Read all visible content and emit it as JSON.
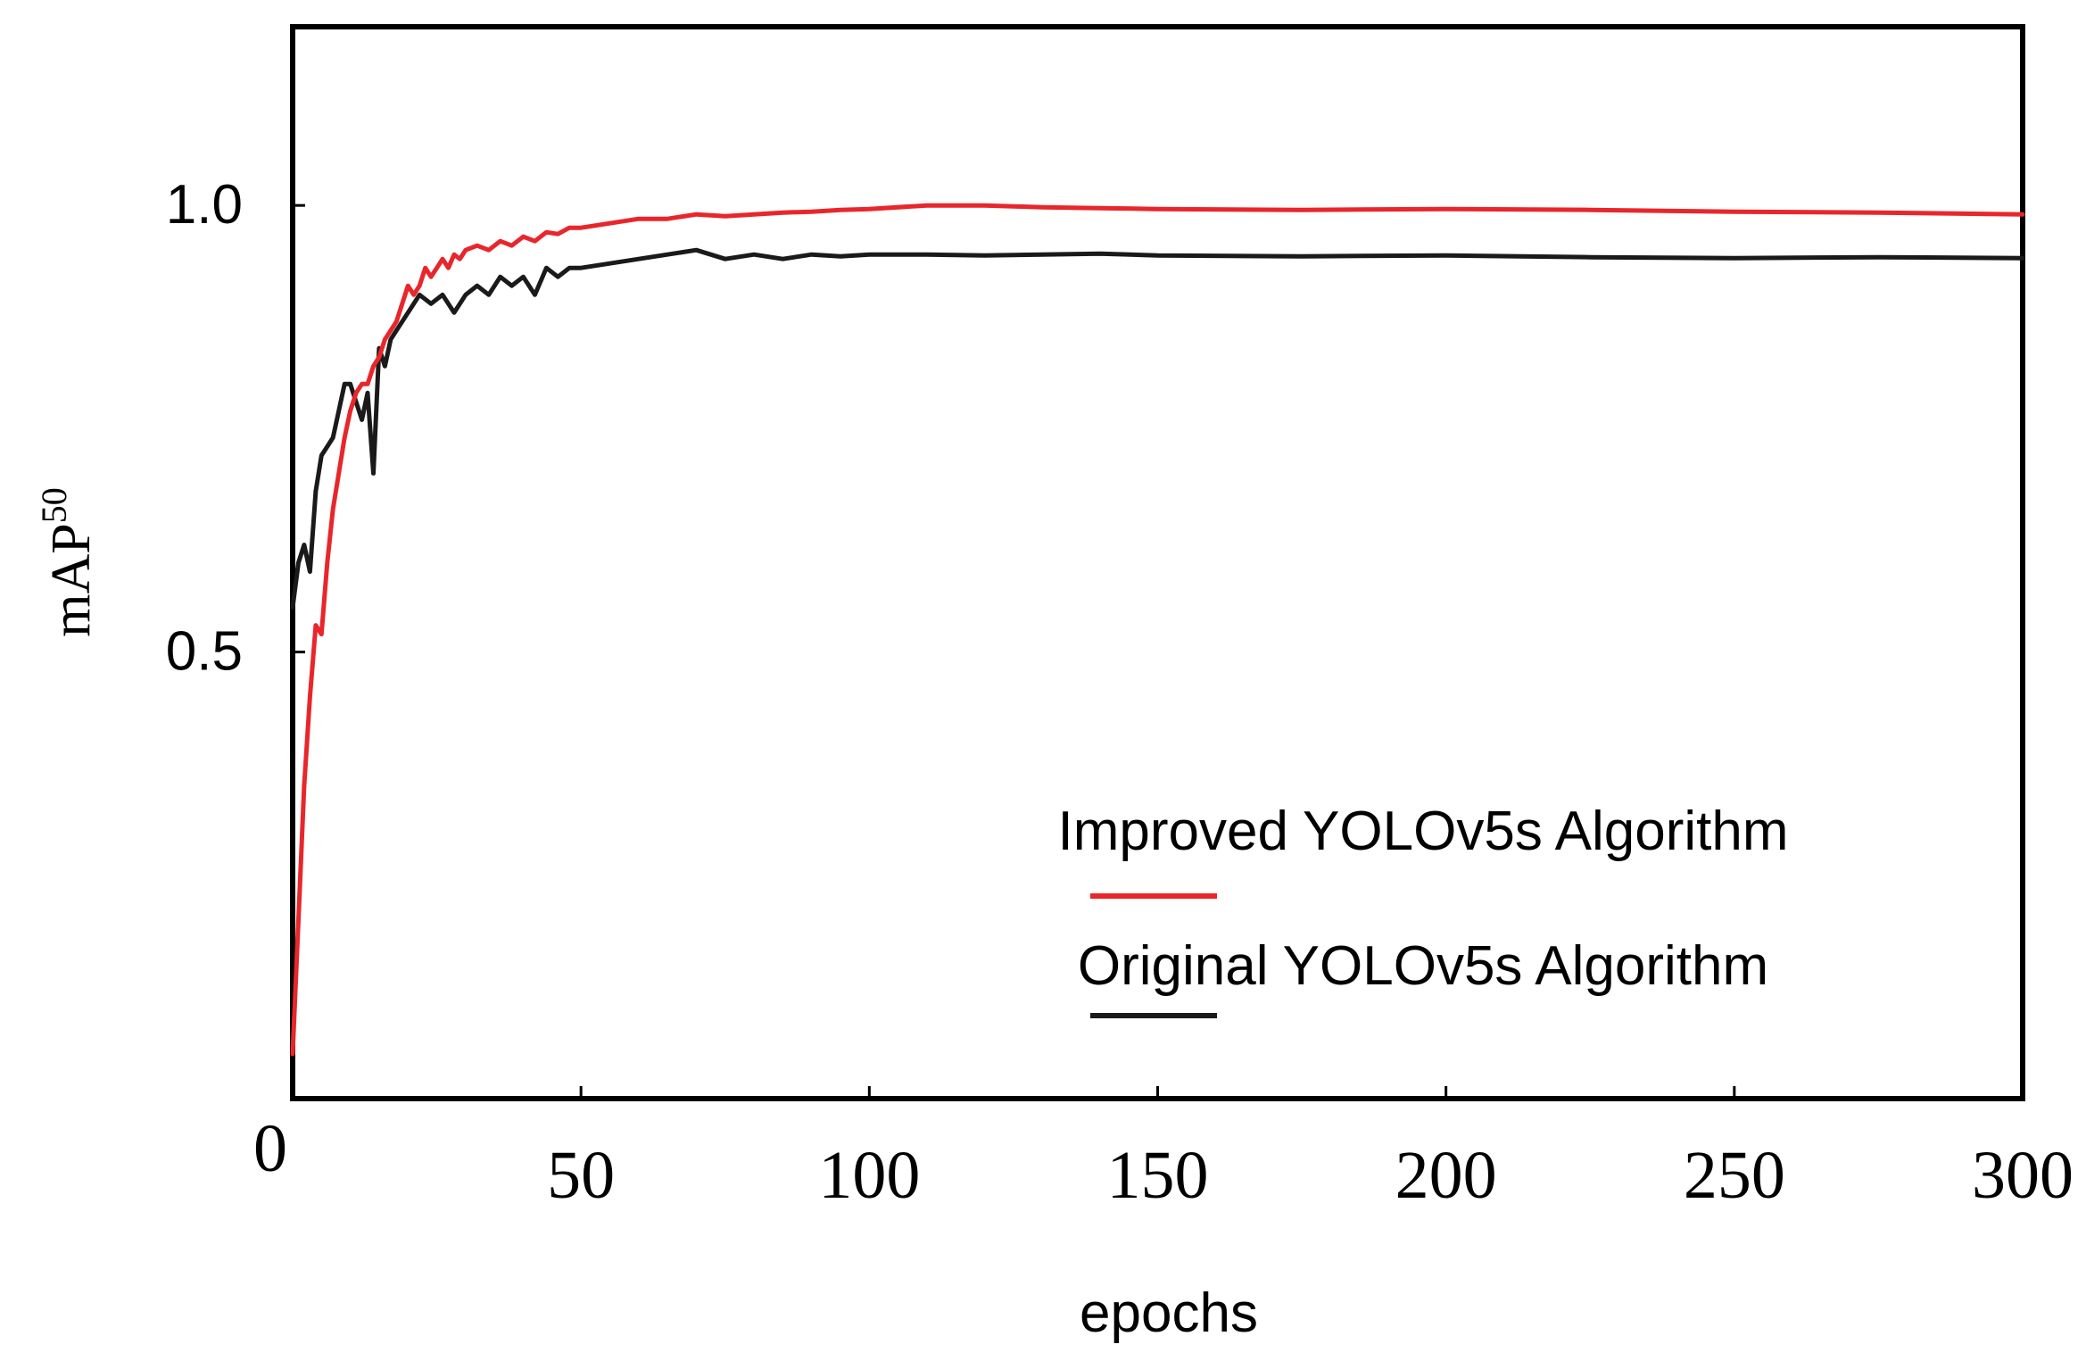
{
  "chart_data": {
    "type": "line",
    "title": "",
    "xlabel": "epochs",
    "ylabel": "mAP",
    "ylabel_superscript": "50",
    "xlim": [
      0,
      300
    ],
    "ylim": [
      0.0,
      1.2
    ],
    "x_ticks": [
      0,
      50,
      100,
      150,
      200,
      250,
      300
    ],
    "x_tick_labels": [
      "0",
      "50",
      "100",
      "150",
      "200",
      "250",
      "300"
    ],
    "y_ticks": [
      0.5,
      1.0
    ],
    "y_tick_labels": [
      "0.5",
      "1.0"
    ],
    "grid": false,
    "legend_position": "bottom-right",
    "series": [
      {
        "name": "Improved YOLOv5s Algorithm",
        "color": "#e8262b",
        "x": [
          0,
          1,
          2,
          3,
          4,
          5,
          6,
          7,
          8,
          9,
          10,
          11,
          12,
          13,
          14,
          15,
          16,
          17,
          18,
          19,
          20,
          21,
          22,
          23,
          24,
          25,
          26,
          27,
          28,
          29,
          30,
          32,
          34,
          36,
          38,
          40,
          42,
          44,
          46,
          48,
          50,
          55,
          60,
          65,
          70,
          75,
          80,
          85,
          90,
          95,
          100,
          110,
          120,
          130,
          140,
          150,
          175,
          200,
          225,
          250,
          275,
          300
        ],
        "values": [
          0.05,
          0.2,
          0.35,
          0.45,
          0.53,
          0.52,
          0.6,
          0.66,
          0.7,
          0.74,
          0.77,
          0.79,
          0.8,
          0.8,
          0.82,
          0.83,
          0.85,
          0.86,
          0.87,
          0.89,
          0.91,
          0.9,
          0.91,
          0.93,
          0.92,
          0.93,
          0.94,
          0.93,
          0.945,
          0.94,
          0.95,
          0.955,
          0.95,
          0.96,
          0.955,
          0.965,
          0.96,
          0.97,
          0.968,
          0.975,
          0.975,
          0.98,
          0.985,
          0.985,
          0.99,
          0.988,
          0.99,
          0.992,
          0.993,
          0.995,
          0.996,
          1.0,
          1.0,
          0.998,
          0.997,
          0.996,
          0.995,
          0.996,
          0.995,
          0.993,
          0.992,
          0.99
        ]
      },
      {
        "name": "Original YOLOv5s Algorithm",
        "color": "#1a1a1a",
        "x": [
          0,
          1,
          2,
          3,
          4,
          5,
          6,
          7,
          8,
          9,
          10,
          11,
          12,
          13,
          14,
          15,
          16,
          17,
          18,
          19,
          20,
          22,
          24,
          26,
          28,
          30,
          32,
          34,
          36,
          38,
          40,
          42,
          44,
          46,
          48,
          50,
          55,
          60,
          65,
          70,
          75,
          80,
          85,
          90,
          95,
          100,
          110,
          120,
          130,
          140,
          150,
          175,
          200,
          225,
          250,
          275,
          300
        ],
        "values": [
          0.55,
          0.6,
          0.62,
          0.59,
          0.68,
          0.72,
          0.73,
          0.74,
          0.77,
          0.8,
          0.8,
          0.78,
          0.76,
          0.79,
          0.7,
          0.84,
          0.82,
          0.85,
          0.86,
          0.87,
          0.88,
          0.9,
          0.89,
          0.9,
          0.88,
          0.9,
          0.91,
          0.9,
          0.92,
          0.91,
          0.92,
          0.9,
          0.93,
          0.92,
          0.93,
          0.93,
          0.935,
          0.94,
          0.945,
          0.95,
          0.94,
          0.945,
          0.94,
          0.945,
          0.943,
          0.945,
          0.945,
          0.944,
          0.945,
          0.946,
          0.944,
          0.943,
          0.944,
          0.942,
          0.941,
          0.942,
          0.941
        ]
      }
    ]
  }
}
